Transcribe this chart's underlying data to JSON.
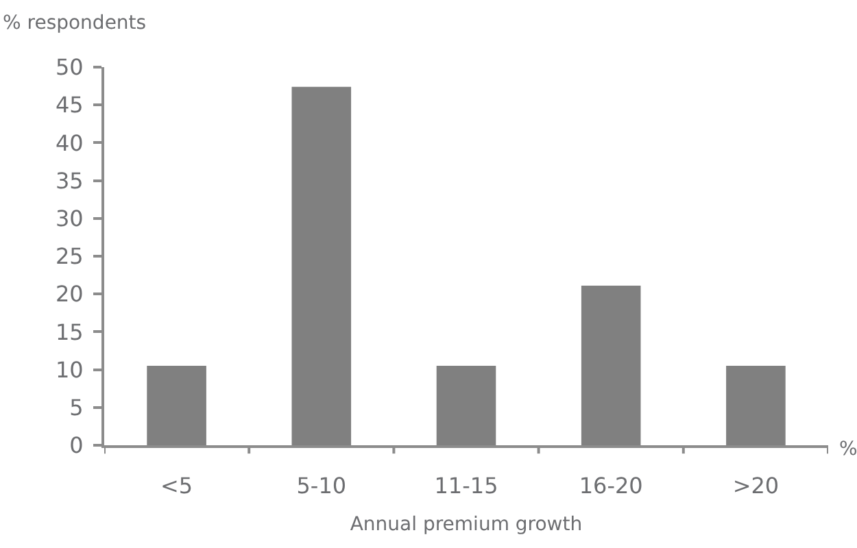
{
  "chart_data": {
    "type": "bar",
    "ylabel": "% respondents",
    "xlabel": "Annual premium growth",
    "categories": [
      "<5",
      "5-10",
      "11-15",
      "16-20",
      ">20"
    ],
    "values": [
      10.5,
      47.4,
      10.5,
      21.1,
      10.5
    ],
    "color": "#808080",
    "ylim": [
      0,
      50
    ],
    "yticks": [
      0,
      5,
      10,
      15,
      20,
      25,
      30,
      35,
      40,
      45,
      50
    ],
    "annotations": [
      "%"
    ]
  }
}
